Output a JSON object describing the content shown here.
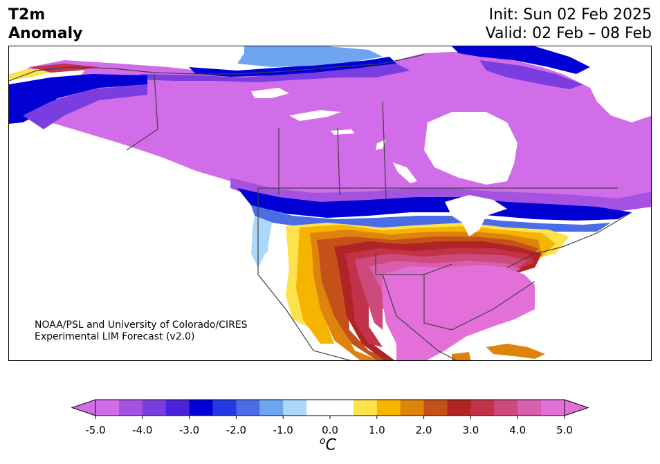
{
  "header": {
    "title_line1": "T2m",
    "title_line2": "Anomaly",
    "init": "Init: Sun 02 Feb 2025",
    "valid": "Valid: 02 Feb – 08 Feb"
  },
  "map": {
    "credit_line1": "NOAA/PSL and University of Colorado/CIRES",
    "credit_line2": "Experimental LIM Forecast (v2.0)"
  },
  "colorbar": {
    "unit": "C",
    "unit_superscript": "o",
    "ticks": [
      "-5.0",
      "-4.0",
      "-3.0",
      "-2.0",
      "-1.0",
      "0.0",
      "1.0",
      "2.0",
      "3.0",
      "4.0",
      "5.0"
    ],
    "colors": [
      "#d16de8",
      "#a552e3",
      "#7a3ee0",
      "#4a22d8",
      "#0000d5",
      "#2438e3",
      "#4a6de5",
      "#6fa4f0",
      "#abd8fa",
      "#ffffff",
      "#ffffff",
      "#fde24d",
      "#f5b400",
      "#de830c",
      "#c4501a",
      "#b02425",
      "#c23248",
      "#cf4a7c",
      "#d85fae",
      "#e370d8"
    ],
    "under_color": "#d16de8",
    "over_color": "#e370d8"
  }
}
